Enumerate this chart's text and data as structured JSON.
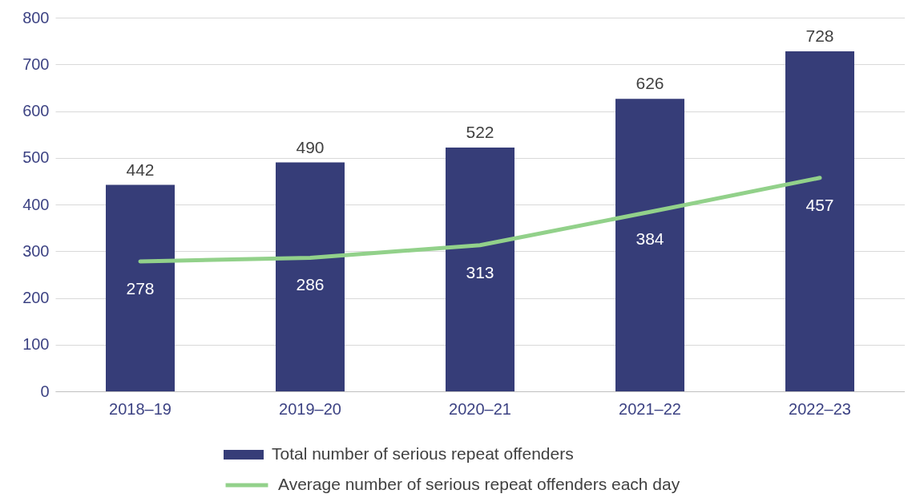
{
  "chart_data": {
    "type": "bar",
    "categories": [
      "2018–19",
      "2019–20",
      "2020–21",
      "2021–22",
      "2022–23"
    ],
    "series": [
      {
        "name": "Total number of serious repeat offenders",
        "color": "#363d78",
        "values": [
          442,
          490,
          522,
          626,
          728
        ]
      },
      {
        "name": "Average number of serious repeat offenders each day",
        "type": "line",
        "color": "#92d18a",
        "values": [
          278,
          286,
          313,
          384,
          457
        ]
      }
    ],
    "ylim": [
      0,
      800
    ],
    "yticks": [
      0,
      100,
      200,
      300,
      400,
      500,
      600,
      700,
      800
    ],
    "grid": "y",
    "legend": "bottom",
    "data_labels": true,
    "line_style": "solid",
    "marker": "none"
  }
}
